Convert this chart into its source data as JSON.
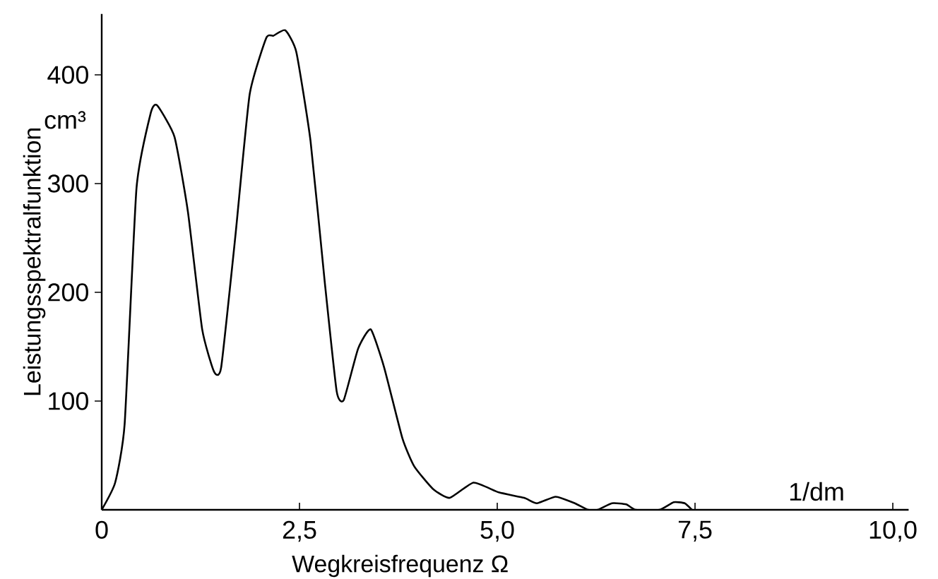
{
  "chart_data": {
    "type": "line",
    "xlabel": "Wegkreisfrequenz Ω",
    "ylabel": "Leistungsspektralfunktion",
    "annotations": [
      "cm³",
      "1/dm"
    ],
    "xlim": [
      0,
      10.2
    ],
    "ylim": [
      0,
      456
    ],
    "xticks": [
      {
        "value": 0,
        "label": "0"
      },
      {
        "value": 2.5,
        "label": "2,5"
      },
      {
        "value": 5,
        "label": "5,0"
      },
      {
        "value": 7.5,
        "label": "7,5"
      },
      {
        "value": 10,
        "label": "10,0"
      }
    ],
    "yticks": [
      100,
      200,
      300,
      400
    ],
    "grid": false,
    "marker": "none",
    "line_style": "solid",
    "series": [
      {
        "color": "#000000",
        "x": [
          0,
          0.17,
          0.29,
          0.44,
          0.62,
          0.7,
          0.92,
          1.09,
          1.27,
          1.42,
          1.51,
          1.69,
          1.87,
          2.08,
          2.17,
          2.32,
          2.46,
          2.64,
          2.82,
          2.97,
          3.06,
          3.24,
          3.4,
          3.57,
          3.8,
          3.95,
          4.19,
          4.4,
          4.7,
          5.02,
          5.34,
          5.5,
          5.74,
          5.98,
          6.15,
          6.27,
          6.45,
          6.63,
          6.75,
          7.05,
          7.23,
          7.37,
          7.46
        ],
        "values": [
          0,
          25,
          79,
          296,
          365,
          372,
          343,
          274,
          166,
          127,
          131,
          252,
          382,
          434,
          436,
          441,
          421,
          339,
          209,
          109,
          101,
          148,
          166,
          131,
          66,
          40,
          19,
          11,
          25,
          16,
          11,
          6,
          12,
          6,
          0,
          0,
          6,
          5,
          0,
          0,
          7,
          6,
          0
        ]
      }
    ]
  }
}
